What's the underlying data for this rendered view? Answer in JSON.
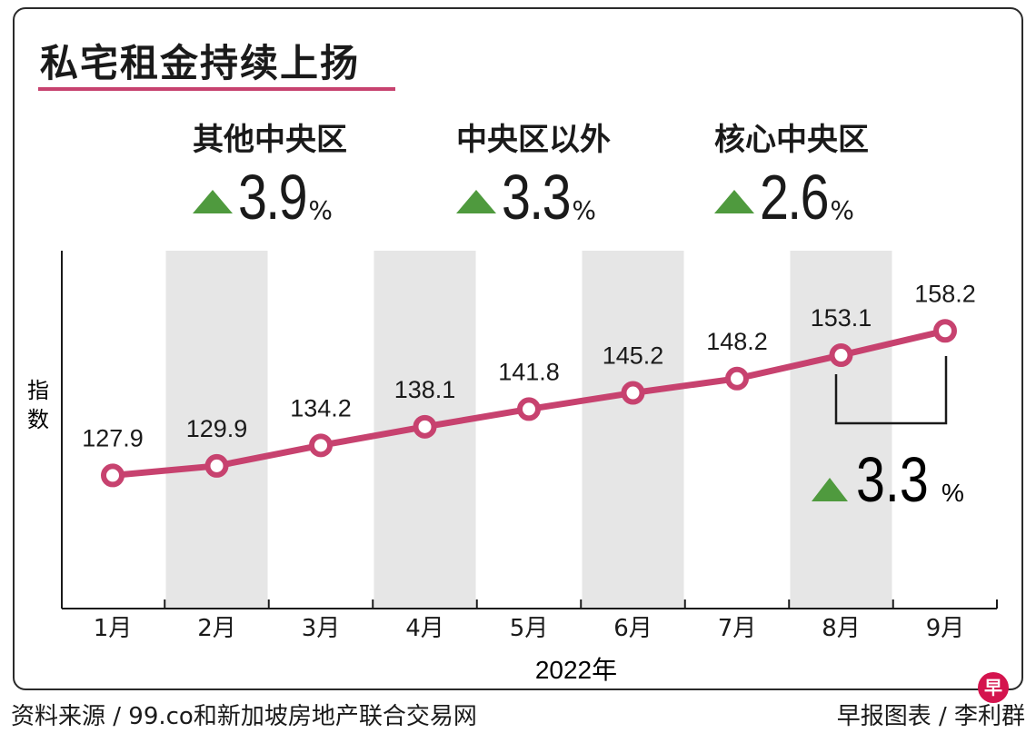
{
  "title": "私宅租金持续上扬",
  "stats": [
    {
      "label": "其他中央区",
      "value": "3.9",
      "unit": "%"
    },
    {
      "label": "中央区以外",
      "value": "3.3",
      "unit": "%"
    },
    {
      "label": "核心中央区",
      "value": "2.6",
      "unit": "%"
    }
  ],
  "annotation": {
    "value": "3.3",
    "unit": "%"
  },
  "colors": {
    "line": "#c7426f",
    "increase": "#4f9a3e",
    "band": "#e6e6e6"
  },
  "chart_data": {
    "type": "line",
    "categories": [
      "1月",
      "2月",
      "3月",
      "4月",
      "5月",
      "6月",
      "7月",
      "8月",
      "9月"
    ],
    "values": [
      127.9,
      129.9,
      134.2,
      138.1,
      141.8,
      145.2,
      148.2,
      153.1,
      158.2
    ],
    "value_labels": [
      "127.9",
      "129.9",
      "134.2",
      "138.1",
      "141.8",
      "145.2",
      "148.2",
      "153.1",
      "158.2"
    ],
    "xlabel": "2022年",
    "ylabel": "指数",
    "ylim": [
      100,
      175
    ],
    "grid": false,
    "shaded_bands": [
      "2月",
      "4月",
      "6月",
      "8月"
    ]
  },
  "footer": {
    "source": "资料来源 / 99.co和新加坡房地产联合交易网",
    "credit": "早报图表 / 李利群",
    "logo": "早"
  }
}
